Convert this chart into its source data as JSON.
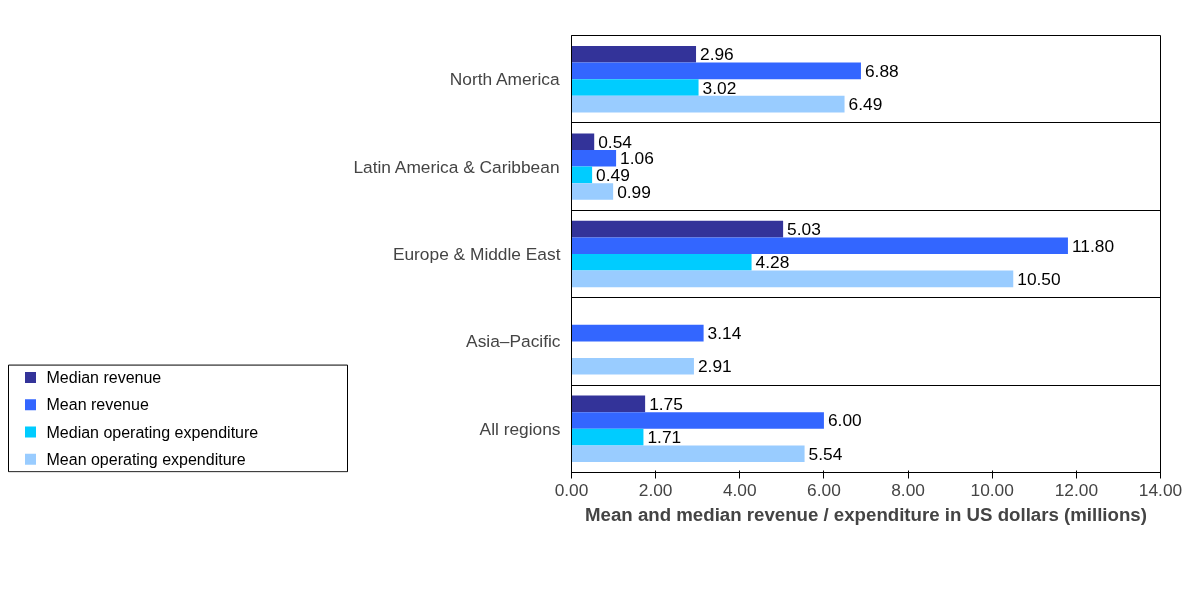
{
  "chart_data": {
    "type": "bar",
    "orientation": "horizontal",
    "xlabel": "Mean and median revenue / expenditure in US dollars (millions)",
    "categories": [
      "North America",
      "Latin America & Caribbean",
      "Europe & Middle East",
      "Asia–Pacific",
      "All regions"
    ],
    "series": [
      {
        "name": "Median revenue",
        "color": "#333399",
        "values": [
          2.96,
          0.54,
          5.03,
          null,
          1.75
        ],
        "value_labels": [
          "2.96",
          "0.54",
          "5.03",
          null,
          "1.75"
        ]
      },
      {
        "name": "Mean revenue",
        "color": "#3366ff",
        "values": [
          6.88,
          1.06,
          11.8,
          3.14,
          6.0
        ],
        "value_labels": [
          "6.88",
          "1.06",
          "11.80",
          "3.14",
          "6.00"
        ]
      },
      {
        "name": "Median operating expenditure",
        "color": "#00ccff",
        "values": [
          3.02,
          0.49,
          4.28,
          null,
          1.71
        ],
        "value_labels": [
          "3.02",
          "0.49",
          "4.28",
          null,
          "1.71"
        ]
      },
      {
        "name": "Mean operating expenditure",
        "color": "#99ccff",
        "values": [
          6.49,
          0.99,
          10.5,
          2.91,
          5.54
        ],
        "value_labels": [
          "6.49",
          "0.99",
          "10.50",
          "2.91",
          "5.54"
        ]
      }
    ],
    "xlim": [
      0,
      14
    ],
    "xticks": [
      {
        "value": 0,
        "label": "0.00"
      },
      {
        "value": 2,
        "label": "2.00"
      },
      {
        "value": 4,
        "label": "4.00"
      },
      {
        "value": 6,
        "label": "6.00"
      },
      {
        "value": 8,
        "label": "8.00"
      },
      {
        "value": 10,
        "label": "10.00"
      },
      {
        "value": 12,
        "label": "12.00"
      },
      {
        "value": 14,
        "label": "14.00"
      }
    ],
    "grid": "y",
    "legend": "bottom left"
  }
}
